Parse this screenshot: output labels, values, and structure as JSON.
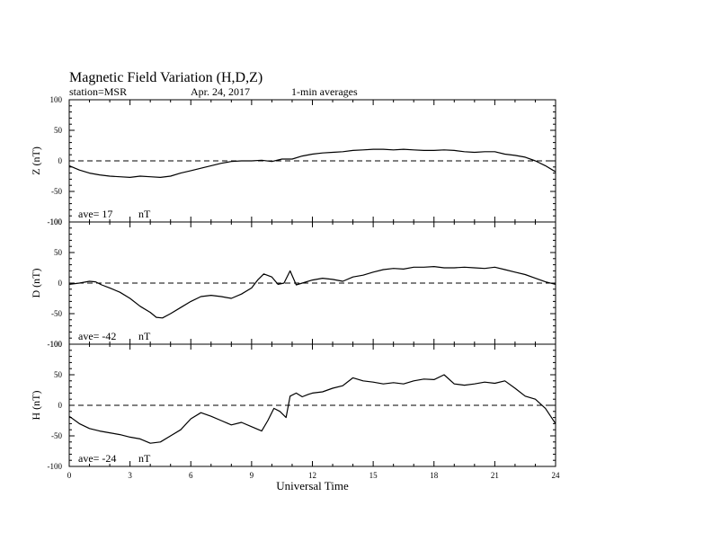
{
  "header": {
    "title": "Magnetic Field Variation (H,D,Z)",
    "station": "station=MSR",
    "date": "Apr. 24, 2017",
    "averaging": "1-min averages"
  },
  "chart_data": [
    {
      "type": "line",
      "panel": "Z",
      "ylabel": "Z (nT)",
      "ylim": [
        -100,
        100
      ],
      "yticks": [
        "100",
        "50",
        "0",
        "-50",
        "-100"
      ],
      "xlim": [
        0,
        24
      ],
      "average_label": "ave= 17",
      "average_unit": "nT",
      "baseline": 0,
      "series": [
        {
          "x": [
            0,
            0.5,
            1,
            1.5,
            2,
            2.5,
            3,
            3.5,
            4,
            4.5,
            5,
            5.5,
            6,
            6.5,
            7,
            7.5,
            8,
            8.5,
            9,
            9.5,
            10,
            10.5,
            11,
            11.5,
            12,
            12.5,
            13,
            13.5,
            14,
            14.5,
            15,
            15.5,
            16,
            16.5,
            17,
            17.5,
            18,
            18.5,
            19,
            19.5,
            20,
            20.5,
            21,
            21.5,
            22,
            22.5,
            23,
            23.5,
            24
          ],
          "values": [
            -8,
            -15,
            -20,
            -23,
            -25,
            -26,
            -27,
            -25,
            -26,
            -27,
            -25,
            -20,
            -16,
            -12,
            -8,
            -4,
            -1,
            0,
            0,
            1,
            -1,
            3,
            3,
            8,
            11,
            13,
            14,
            15,
            17,
            18,
            19,
            19,
            18,
            19,
            18,
            17,
            17,
            18,
            17,
            15,
            14,
            15,
            15,
            11,
            9,
            6,
            0,
            -8,
            -18
          ]
        }
      ]
    },
    {
      "type": "line",
      "panel": "D",
      "ylabel": "D (nT)",
      "ylim": [
        -100,
        100
      ],
      "yticks": [
        "100",
        "50",
        "0",
        "-50",
        "-100"
      ],
      "xlim": [
        0,
        24
      ],
      "average_label": "ave= -42",
      "average_unit": "nT",
      "baseline": 0,
      "series": [
        {
          "x": [
            0,
            0.5,
            1,
            1.3,
            1.6,
            2,
            2.5,
            3,
            3.5,
            4,
            4.3,
            4.6,
            5,
            5.5,
            6,
            6.5,
            7,
            7.5,
            8,
            8.5,
            9,
            9.3,
            9.6,
            10,
            10.3,
            10.6,
            10.9,
            11.2,
            11.5,
            12,
            12.5,
            13,
            13.5,
            14,
            14.5,
            15,
            15.5,
            16,
            16.5,
            17,
            17.5,
            18,
            18.5,
            19,
            19.5,
            20,
            20.5,
            21,
            21.5,
            22,
            22.5,
            23,
            23.5,
            24
          ],
          "values": [
            -2,
            0,
            3,
            2,
            -3,
            -8,
            -15,
            -25,
            -38,
            -48,
            -56,
            -57,
            -50,
            -40,
            -30,
            -22,
            -20,
            -22,
            -25,
            -18,
            -8,
            5,
            15,
            10,
            -2,
            0,
            20,
            -3,
            0,
            5,
            8,
            6,
            3,
            10,
            13,
            18,
            22,
            24,
            23,
            26,
            26,
            27,
            25,
            25,
            26,
            25,
            24,
            26,
            22,
            18,
            14,
            8,
            2,
            -2
          ]
        }
      ]
    },
    {
      "type": "line",
      "panel": "H",
      "ylabel": "H (nT)",
      "ylim": [
        -100,
        100
      ],
      "yticks": [
        "100",
        "50",
        "0",
        "-50",
        "-100"
      ],
      "xlim": [
        0,
        24
      ],
      "xticks": [
        "0",
        "3",
        "6",
        "9",
        "12",
        "15",
        "18",
        "21",
        "24"
      ],
      "xlabel": "Universal Time",
      "average_label": "ave= -24",
      "average_unit": "nT",
      "baseline": 0,
      "series": [
        {
          "x": [
            0,
            0.5,
            1,
            1.5,
            2,
            2.5,
            3,
            3.5,
            4,
            4.5,
            5,
            5.5,
            6,
            6.5,
            7,
            7.5,
            8,
            8.5,
            9,
            9.5,
            9.8,
            10.1,
            10.4,
            10.7,
            10.9,
            11.2,
            11.5,
            11.8,
            12,
            12.5,
            13,
            13.5,
            14,
            14.5,
            15,
            15.5,
            16,
            16.5,
            17,
            17.5,
            18,
            18.5,
            19,
            19.5,
            20,
            20.5,
            21,
            21.5,
            22,
            22.5,
            23,
            23.5,
            24
          ],
          "values": [
            -18,
            -30,
            -38,
            -42,
            -45,
            -48,
            -52,
            -55,
            -62,
            -60,
            -50,
            -40,
            -22,
            -12,
            -18,
            -25,
            -32,
            -28,
            -35,
            -42,
            -25,
            -5,
            -10,
            -20,
            15,
            20,
            14,
            18,
            20,
            22,
            28,
            32,
            45,
            40,
            38,
            35,
            37,
            35,
            40,
            43,
            42,
            50,
            35,
            33,
            35,
            38,
            36,
            40,
            28,
            15,
            10,
            -5,
            -30
          ]
        }
      ]
    }
  ]
}
